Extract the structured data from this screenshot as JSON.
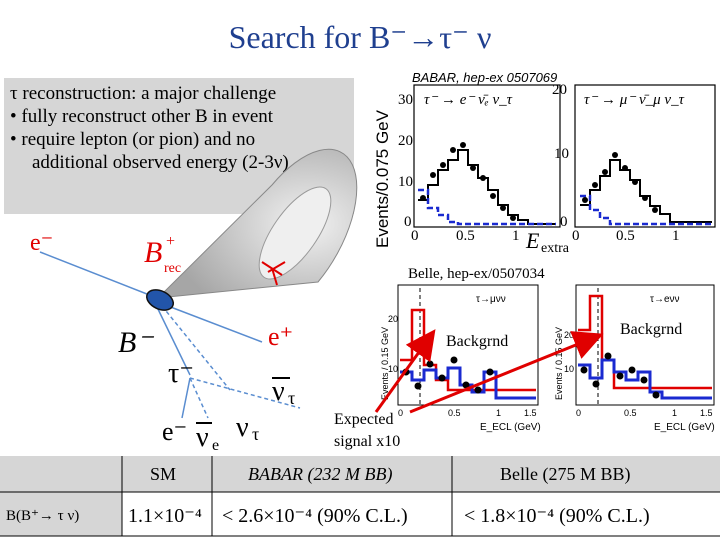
{
  "slide": {
    "title": "Search for B⁻→τ⁻ ν",
    "bullets": {
      "b1": "τ reconstruction: a major challenge",
      "b2": "• fully reconstruct other B in event",
      "b3": "• require lepton (or pion) and no",
      "b4": "additional observed energy (2-3ν)"
    }
  },
  "diagram": {
    "e_label": "e⁻",
    "brec_label": "B",
    "brec_sup": "+",
    "brec_sub": "rec",
    "bminus_label": "B⁻",
    "eplus_label": "e⁺",
    "tau_label": "τ⁻",
    "nutau_bar_label": "ν",
    "nutau_bar_sub": "τ",
    "eminus2_label": "e⁻",
    "nue_bar_label": "ν",
    "nue_sub": "e",
    "nutau_label": "ν",
    "nutau_sub": "τ"
  },
  "babar": {
    "ref": "BABAR, hep-ex 0507069",
    "ylabel": "Events/0.075 GeV",
    "xlabel": "E",
    "xlabel_sub": "extra",
    "panel1_title": "τ⁻ → e⁻ ν̄ₑ ν_τ",
    "panel2_title": "τ⁻ → μ⁻ ν̄_μ ν_τ",
    "yticks_left": [
      "30",
      "20",
      "10",
      "0"
    ],
    "yticks_right": [
      "20",
      "10",
      "0"
    ],
    "xticks_left": [
      "0",
      "0.5",
      "1"
    ],
    "xticks_right": [
      "0",
      "0.5",
      "1"
    ]
  },
  "belle": {
    "ref": "Belle, hep-ex/0507034",
    "ylabel": "Events / 0.15 GeV",
    "panel1_title": "τ→μνν",
    "panel2_title": "τ→eνν",
    "bkg_label1": "Backgrnd",
    "bkg_label2": "Backgrnd",
    "xlabel1": "E_ECL (GeV)",
    "xlabel2": "E_ECL (GeV)",
    "yticks": [
      "20",
      "10"
    ],
    "xticks": [
      "0",
      "0.5",
      "1",
      "1.5"
    ],
    "expected": "Expected",
    "expected2": "signal x10"
  },
  "results": {
    "col_sm": "SM",
    "col_babar": "BABAR (232 M BB)",
    "col_belle": "Belle (275 M BB)",
    "row_label": "B(B⁺→ τ ν)",
    "sm_value": "1.1×10⁻⁴",
    "babar_value": "< 2.6×10⁻⁴   (90% C.L.)",
    "belle_value": "< 1.8×10⁻⁴   (90% C.L.)"
  },
  "colors": {
    "title": "#1f3f8f",
    "signal": "#1a2ad0",
    "background_hist": "#e00000",
    "arrow": "#e00000",
    "panel_bg": "#d6d6d6"
  }
}
